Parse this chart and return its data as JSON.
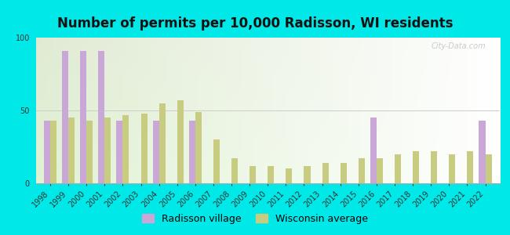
{
  "title": "Number of permits per 10,000 Radisson, WI residents",
  "years": [
    1998,
    1999,
    2000,
    2001,
    2002,
    2003,
    2004,
    2005,
    2006,
    2007,
    2008,
    2009,
    2010,
    2011,
    2012,
    2013,
    2014,
    2015,
    2016,
    2017,
    2018,
    2019,
    2020,
    2021,
    2022
  ],
  "radisson": [
    43,
    91,
    91,
    91,
    43,
    0,
    43,
    0,
    43,
    0,
    0,
    0,
    0,
    0,
    0,
    0,
    0,
    0,
    45,
    0,
    0,
    0,
    0,
    0,
    43
  ],
  "wisconsin": [
    43,
    45,
    43,
    45,
    47,
    48,
    55,
    57,
    49,
    30,
    17,
    12,
    12,
    10,
    12,
    14,
    14,
    17,
    17,
    20,
    22,
    22,
    20,
    22,
    20
  ],
  "radisson_color": "#c9a8d8",
  "wisconsin_color": "#c8cc80",
  "outer_bg": "#00e8e8",
  "plot_bg": "#e8f5e4",
  "ylim": [
    0,
    100
  ],
  "yticks": [
    0,
    50,
    100
  ],
  "bar_width": 0.35,
  "title_fontsize": 12,
  "legend_fontsize": 9,
  "tick_fontsize": 7,
  "watermark": "City-Data.com",
  "legend_label1": "Radisson village",
  "legend_label2": "Wisconsin average"
}
